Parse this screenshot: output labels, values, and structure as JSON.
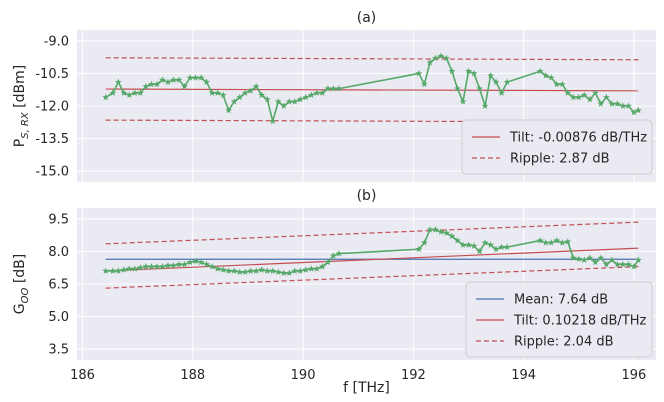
{
  "chart_data": [
    {
      "type": "line",
      "title": "(a)",
      "ylabel_main": "P",
      "ylabel_sub": "S, RX",
      "ylabel_unit": " [dBm]",
      "xlim": [
        185.9,
        196.4
      ],
      "ylim": [
        -15.5,
        -8.5
      ],
      "xticks": [
        186,
        188,
        190,
        192,
        194,
        196
      ],
      "yticks": [
        -9.0,
        -10.5,
        -12.0,
        -13.5,
        -15.0
      ],
      "ytick_labels": [
        "-9.0",
        "-10.5",
        "-12.0",
        "-13.5",
        "-15.0"
      ],
      "grid": true,
      "legend_position": "lower-right",
      "colors": {
        "measured": "#55a868",
        "fit": "#c44e52"
      },
      "series": [
        {
          "style": "measured",
          "x": [
            186.42,
            186.55,
            186.65,
            186.75,
            186.85,
            186.95,
            187.05,
            187.15,
            187.25,
            187.35,
            187.45,
            187.55,
            187.65,
            187.75,
            187.85,
            187.95,
            188.05,
            188.15,
            188.25,
            188.35,
            188.45,
            188.55,
            188.65,
            188.75,
            188.85,
            188.95,
            189.05,
            189.15,
            189.25,
            189.35,
            189.45,
            189.55,
            189.65,
            189.75,
            189.85,
            189.95,
            190.05,
            190.15,
            190.25,
            190.35,
            190.45,
            190.55,
            190.65,
            192.1,
            192.2,
            192.3,
            192.4,
            192.5,
            192.6,
            192.7,
            192.8,
            192.9,
            193.0,
            193.1,
            193.2,
            193.3,
            193.4,
            193.5,
            193.6,
            193.7,
            194.3,
            194.4,
            194.5,
            194.6,
            194.7,
            194.8,
            194.9,
            195.0,
            195.1,
            195.2,
            195.3,
            195.4,
            195.5,
            195.6,
            195.7,
            195.8,
            195.9,
            196.0,
            196.08
          ],
          "y": [
            -11.6,
            -11.4,
            -10.9,
            -11.4,
            -11.5,
            -11.4,
            -11.4,
            -11.1,
            -11.0,
            -11.0,
            -10.8,
            -10.9,
            -10.8,
            -10.8,
            -11.1,
            -10.7,
            -10.7,
            -10.7,
            -10.9,
            -11.4,
            -11.4,
            -11.5,
            -12.2,
            -11.8,
            -11.6,
            -11.4,
            -11.3,
            -11.1,
            -11.5,
            -11.7,
            -12.7,
            -11.8,
            -12.0,
            -11.8,
            -11.8,
            -11.7,
            -11.6,
            -11.5,
            -11.4,
            -11.4,
            -11.2,
            -11.2,
            -11.2,
            -10.5,
            -11.0,
            -10.0,
            -9.8,
            -9.7,
            -9.8,
            -10.4,
            -11.2,
            -11.8,
            -10.4,
            -10.5,
            -11.2,
            -12.0,
            -10.6,
            -10.9,
            -11.4,
            -10.9,
            -10.4,
            -10.6,
            -10.7,
            -11.0,
            -11.0,
            -11.4,
            -11.6,
            -11.6,
            -11.5,
            -11.7,
            -11.4,
            -11.9,
            -11.6,
            -11.9,
            -11.9,
            -12.0,
            -12.0,
            -12.3,
            -12.2
          ]
        },
        {
          "name": "Tilt: -0.00876 dB/THz",
          "style": "fit-solid",
          "x": [
            186.42,
            196.08
          ],
          "y": [
            -11.22,
            -11.3
          ]
        },
        {
          "name": "Ripple: 2.87 dB",
          "style": "fit-dashed",
          "x": [
            186.42,
            196.08
          ],
          "y": [
            -9.78,
            -9.87
          ]
        },
        {
          "name": "",
          "style": "fit-dashed",
          "x": [
            186.42,
            196.08
          ],
          "y": [
            -12.65,
            -12.74
          ]
        }
      ]
    },
    {
      "type": "line",
      "title": "(b)",
      "ylabel_main": "G",
      "ylabel_sub": "OO",
      "ylabel_unit": " [dB]",
      "xlabel": "f [THz]",
      "xlim": [
        185.9,
        196.4
      ],
      "ylim": [
        3.0,
        10.0
      ],
      "xticks": [
        186,
        188,
        190,
        192,
        194,
        196
      ],
      "yticks": [
        3.5,
        5.0,
        6.5,
        8.0,
        9.5
      ],
      "ytick_labels": [
        "3.5",
        "5.0",
        "6.5",
        "8.0",
        "9.5"
      ],
      "grid": true,
      "legend_position": "lower-right",
      "colors": {
        "measured": "#55a868",
        "fit": "#c44e52",
        "mean": "#4c72b0"
      },
      "series": [
        {
          "style": "measured",
          "x": [
            186.42,
            186.55,
            186.65,
            186.75,
            186.85,
            186.95,
            187.05,
            187.15,
            187.25,
            187.35,
            187.45,
            187.55,
            187.65,
            187.75,
            187.85,
            187.95,
            188.05,
            188.15,
            188.25,
            188.35,
            188.45,
            188.55,
            188.65,
            188.75,
            188.85,
            188.95,
            189.05,
            189.15,
            189.25,
            189.35,
            189.45,
            189.55,
            189.65,
            189.75,
            189.85,
            189.95,
            190.05,
            190.15,
            190.25,
            190.35,
            190.45,
            190.55,
            190.65,
            192.1,
            192.2,
            192.3,
            192.4,
            192.5,
            192.6,
            192.7,
            192.8,
            192.9,
            193.0,
            193.1,
            193.2,
            193.3,
            193.4,
            193.5,
            193.6,
            193.7,
            194.3,
            194.4,
            194.5,
            194.6,
            194.7,
            194.8,
            194.9,
            195.0,
            195.1,
            195.2,
            195.3,
            195.4,
            195.5,
            195.6,
            195.7,
            195.8,
            195.9,
            196.0,
            196.08
          ],
          "y": [
            7.1,
            7.1,
            7.1,
            7.15,
            7.2,
            7.2,
            7.25,
            7.3,
            7.3,
            7.3,
            7.3,
            7.35,
            7.35,
            7.4,
            7.4,
            7.5,
            7.55,
            7.5,
            7.4,
            7.3,
            7.2,
            7.15,
            7.1,
            7.1,
            7.05,
            7.05,
            7.1,
            7.1,
            7.15,
            7.1,
            7.1,
            7.05,
            7.0,
            7.0,
            7.1,
            7.1,
            7.15,
            7.2,
            7.2,
            7.3,
            7.5,
            7.8,
            7.9,
            8.1,
            8.4,
            9.0,
            9.0,
            8.9,
            8.85,
            8.7,
            8.5,
            8.3,
            8.3,
            8.25,
            8.0,
            8.4,
            8.3,
            8.1,
            8.2,
            8.2,
            8.5,
            8.4,
            8.4,
            8.5,
            8.4,
            8.45,
            7.7,
            7.65,
            7.6,
            7.7,
            7.5,
            7.7,
            7.4,
            7.6,
            7.4,
            7.4,
            7.4,
            7.3,
            7.6
          ]
        },
        {
          "name": "Mean: 7.64 dB",
          "style": "mean",
          "x": [
            186.42,
            196.08
          ],
          "y": [
            7.64,
            7.64
          ]
        },
        {
          "name": "Tilt: 0.10218 dB/THz",
          "style": "fit-solid",
          "x": [
            186.42,
            196.08
          ],
          "y": [
            7.1,
            8.15
          ]
        },
        {
          "name": "Ripple: 2.04 dB",
          "style": "fit-dashed",
          "x": [
            186.42,
            196.08
          ],
          "y": [
            8.35,
            9.35
          ]
        },
        {
          "name": "",
          "style": "fit-dashed",
          "x": [
            186.42,
            196.08
          ],
          "y": [
            6.31,
            7.3
          ]
        }
      ]
    }
  ]
}
